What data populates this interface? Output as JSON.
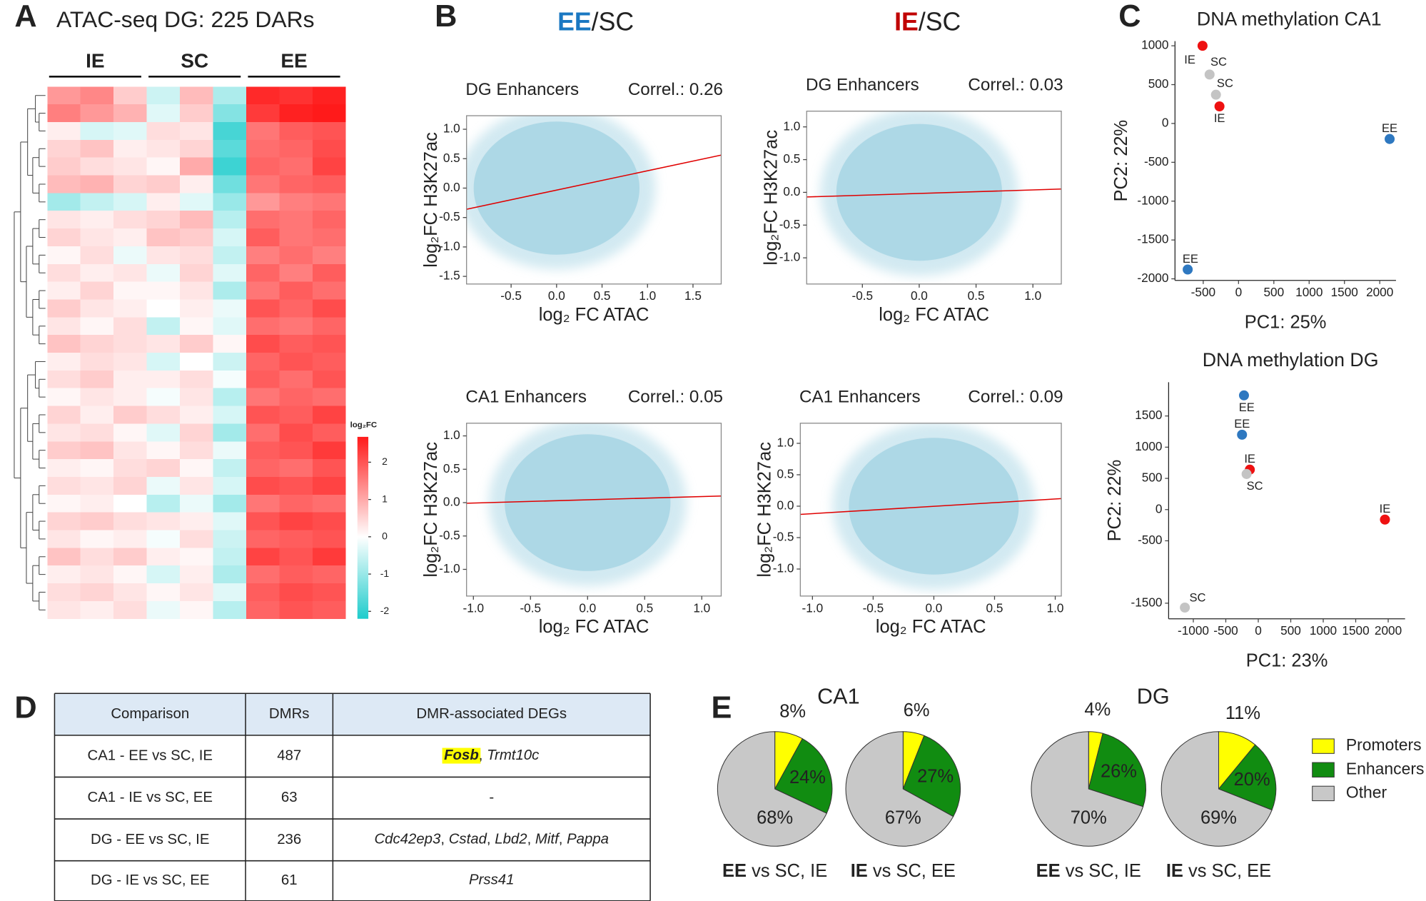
{
  "panel_labels": [
    "A",
    "B",
    "C",
    "D",
    "E"
  ],
  "chart_data": [
    {
      "type": "heatmap",
      "title": "ATAC-seq DG: 225 DARs",
      "groups": [
        {
          "name": "IE",
          "color": "#c00000"
        },
        {
          "name": "SC",
          "color": "#111111"
        },
        {
          "name": "EE",
          "color": "#1a78c2"
        }
      ],
      "colors": [
        "#1ecccc",
        "#ffffff",
        "#ff1a1a"
      ],
      "colorbar": {
        "title": "log₂FC",
        "lim": [
          -2.2,
          2.68
        ],
        "ticks": [
          2,
          1,
          0,
          -1,
          -2
        ]
      },
      "matrix": [
        [
          1.2,
          1.4,
          0.6,
          -0.5,
          0.8,
          -0.8,
          2.5,
          2.4,
          2.6
        ],
        [
          1.5,
          1.2,
          0.9,
          -0.3,
          0.6,
          -1.2,
          2.3,
          2.6,
          2.7
        ],
        [
          0.2,
          -0.4,
          -0.3,
          0.4,
          0.3,
          -1.8,
          1.6,
          1.9,
          2.0
        ],
        [
          0.5,
          0.7,
          0.2,
          0.3,
          0.5,
          -1.6,
          1.7,
          1.8,
          2.1
        ],
        [
          0.6,
          0.4,
          0.3,
          0.1,
          1.0,
          -1.9,
          1.8,
          1.7,
          2.2
        ],
        [
          0.8,
          0.9,
          0.5,
          0.6,
          0.2,
          -1.4,
          1.6,
          1.8,
          1.9
        ],
        [
          -0.9,
          -0.6,
          -0.4,
          0.2,
          -0.3,
          -1.0,
          1.2,
          1.5,
          1.6
        ],
        [
          0.3,
          0.2,
          0.4,
          0.5,
          0.8,
          -0.7,
          1.7,
          1.6,
          1.8
        ],
        [
          0.5,
          0.3,
          0.2,
          0.7,
          0.6,
          -0.4,
          1.9,
          1.6,
          1.7
        ],
        [
          0.1,
          0.4,
          -0.2,
          0.3,
          0.4,
          -0.6,
          1.5,
          1.7,
          1.5
        ],
        [
          0.4,
          0.2,
          0.3,
          -0.2,
          0.5,
          -0.3,
          1.8,
          1.5,
          1.9
        ],
        [
          0.2,
          0.5,
          0.1,
          0.1,
          0.3,
          -0.8,
          1.6,
          1.9,
          1.7
        ],
        [
          0.6,
          0.3,
          0.2,
          0.0,
          0.2,
          -0.2,
          2.0,
          1.8,
          2.1
        ],
        [
          0.3,
          0.1,
          0.4,
          -0.6,
          0.1,
          -0.3,
          1.7,
          1.6,
          1.8
        ],
        [
          0.7,
          0.5,
          0.4,
          0.3,
          0.6,
          0.1,
          2.1,
          1.9,
          2.0
        ],
        [
          0.2,
          0.4,
          0.3,
          -0.4,
          0.0,
          -0.5,
          1.8,
          2.0,
          1.9
        ],
        [
          0.4,
          0.6,
          0.2,
          0.2,
          0.4,
          -0.1,
          1.9,
          1.7,
          2.0
        ],
        [
          0.1,
          0.3,
          0.2,
          -0.1,
          0.3,
          -0.7,
          1.6,
          1.8,
          1.7
        ],
        [
          0.5,
          0.2,
          0.6,
          0.4,
          0.2,
          -0.4,
          2.0,
          1.9,
          2.2
        ],
        [
          0.3,
          0.4,
          0.1,
          -0.3,
          0.5,
          -0.9,
          1.7,
          2.1,
          1.9
        ],
        [
          0.6,
          0.7,
          0.3,
          0.1,
          0.4,
          -0.2,
          1.9,
          2.0,
          2.3
        ],
        [
          0.2,
          0.1,
          0.4,
          0.5,
          0.1,
          -0.6,
          1.8,
          1.7,
          2.0
        ],
        [
          0.4,
          0.3,
          0.5,
          -0.2,
          0.3,
          -0.4,
          2.1,
          2.0,
          2.2
        ],
        [
          0.1,
          0.2,
          0.0,
          -0.7,
          -0.2,
          -0.9,
          1.6,
          1.8,
          1.7
        ],
        [
          0.5,
          0.6,
          0.4,
          0.3,
          0.2,
          -0.3,
          2.0,
          2.2,
          2.1
        ],
        [
          0.3,
          0.1,
          0.2,
          -0.1,
          0.4,
          -0.5,
          1.8,
          1.9,
          2.0
        ],
        [
          0.7,
          0.4,
          0.6,
          0.2,
          0.1,
          -0.6,
          2.2,
          2.0,
          2.3
        ],
        [
          0.2,
          0.3,
          0.1,
          -0.4,
          0.2,
          -0.8,
          1.7,
          1.9,
          1.8
        ],
        [
          0.4,
          0.5,
          0.3,
          0.1,
          0.3,
          -0.3,
          1.9,
          2.1,
          2.0
        ],
        [
          0.3,
          0.2,
          0.4,
          -0.2,
          0.1,
          -0.7,
          1.8,
          2.0,
          1.9
        ]
      ]
    },
    {
      "type": "scatter",
      "frame": true,
      "title": "DG Enhancers",
      "annotation": "Correl.: 0.26",
      "xlabel": "log₂ FC ATAC",
      "ylabel": "log₂FC H3K27ac",
      "point_color": "#add8e6",
      "xlim": [
        -0.99,
        1.81
      ],
      "ylim": [
        -1.63,
        1.23
      ],
      "xticks": [
        -0.5,
        {
          "value": 0,
          "label": "0.0"
        },
        0.5,
        {
          "value": 1,
          "label": "1.0"
        },
        1.5
      ],
      "yticks": [
        {
          "value": 1,
          "label": "1.0"
        },
        0.5,
        {
          "value": 0,
          "label": "0.0"
        },
        -0.5,
        {
          "value": -1,
          "label": "-1.0"
        },
        -1.5
      ],
      "fit": {
        "color": "#e00000",
        "x": [
          -0.99,
          1.81
        ],
        "values": [
          -0.36,
          0.56
        ]
      }
    },
    {
      "type": "scatter",
      "frame": true,
      "title": "DG Enhancers",
      "annotation": "Correl.: 0.03",
      "xlabel": "log₂ FC ATAC",
      "ylabel": "log₂FC H3K27ac",
      "point_color": "#add8e6",
      "xlim": [
        -0.99,
        1.25
      ],
      "ylim": [
        -1.4,
        1.24
      ],
      "xticks": [
        -0.5,
        {
          "value": 0,
          "label": "0.0"
        },
        0.5,
        {
          "value": 1,
          "label": "1.0"
        }
      ],
      "yticks": [
        {
          "value": 1,
          "label": "1.0"
        },
        0.5,
        {
          "value": 0,
          "label": "0.0"
        },
        -0.5,
        {
          "value": -1,
          "label": "-1.0"
        }
      ],
      "fit": {
        "color": "#e00000",
        "x": [
          -0.99,
          1.25
        ],
        "values": [
          -0.07,
          0.05
        ]
      }
    },
    {
      "type": "scatter",
      "frame": true,
      "title": "CA1 Enhancers",
      "annotation": "Correl.: 0.05",
      "xlabel": "log₂ FC ATAC",
      "ylabel": "log₂FC H3K27ac",
      "point_color": "#add8e6",
      "xlim": [
        -1.06,
        1.17
      ],
      "ylim": [
        -1.4,
        1.19
      ],
      "xticks": [
        {
          "value": -1,
          "label": "-1.0"
        },
        -0.5,
        {
          "value": 0,
          "label": "0.0"
        },
        0.5,
        {
          "value": 1,
          "label": "1.0"
        }
      ],
      "yticks": [
        {
          "value": 1,
          "label": "1.0"
        },
        0.5,
        {
          "value": 0,
          "label": "0.0"
        },
        -0.5,
        {
          "value": -1,
          "label": "-1.0"
        }
      ],
      "fit": {
        "color": "#e00000",
        "x": [
          -1.06,
          1.17
        ],
        "values": [
          -0.01,
          0.1
        ]
      }
    },
    {
      "type": "scatter",
      "frame": true,
      "title": "CA1 Enhancers",
      "annotation": "Correl.: 0.09",
      "xlabel": "log₂ FC ATAC",
      "ylabel": "log₂FC H3K27ac",
      "point_color": "#add8e6",
      "xlim": [
        -1.1,
        1.05
      ],
      "ylim": [
        -1.43,
        1.32
      ],
      "xticks": [
        {
          "value": -1,
          "label": "-1.0"
        },
        -0.5,
        {
          "value": 0,
          "label": "0.0"
        },
        0.5,
        {
          "value": 1,
          "label": "1.0"
        }
      ],
      "yticks": [
        {
          "value": 1,
          "label": "1.0"
        },
        0.5,
        {
          "value": 0,
          "label": "0.0"
        },
        -0.5,
        {
          "value": -1,
          "label": "-1.0"
        }
      ],
      "fit": {
        "color": "#e00000",
        "x": [
          -1.1,
          1.05
        ],
        "values": [
          -0.13,
          0.12
        ]
      }
    },
    {
      "type": "scatter",
      "frame": false,
      "title": "DNA methylation CA1",
      "xlabel": "PC1: 25%",
      "ylabel": "PC2: 22%",
      "xlim": [
        -900,
        2230
      ],
      "ylim": [
        -2020,
        1060
      ],
      "xticks": [
        -500,
        0,
        500,
        1000,
        1500,
        2000
      ],
      "yticks": [
        1000,
        500,
        0,
        -500,
        -1000,
        -1500,
        -2000
      ],
      "series": [
        {
          "name": "IE",
          "color": "#ee1111",
          "label_color": "#ee1111",
          "x": [
            -510,
            -270
          ],
          "values": [
            1000,
            220
          ]
        },
        {
          "name": "SC",
          "color": "#c4c4c4",
          "label_color": "#111111",
          "x": [
            -410,
            -320
          ],
          "values": [
            630,
            370
          ]
        },
        {
          "name": "EE",
          "color": "#2e78c0",
          "label_color": "#2e78c0",
          "x": [
            2140,
            -720
          ],
          "values": [
            -200,
            -1880
          ]
        }
      ]
    },
    {
      "type": "scatter",
      "frame": false,
      "title": "DNA methylation DG",
      "xlabel": "PC1: 23%",
      "ylabel": "PC2: 22%",
      "xlim": [
        -1380,
        2260
      ],
      "ylim": [
        -1750,
        2040
      ],
      "xticks": [
        -1000,
        -500,
        0,
        500,
        1000,
        1500,
        2000
      ],
      "yticks": [
        1500,
        1000,
        500,
        0,
        -500,
        -1500
      ],
      "series": [
        {
          "name": "IE",
          "color": "#ee1111",
          "label_color": "#ee1111",
          "x": [
            -130,
            1950
          ],
          "values": [
            640,
            -160
          ]
        },
        {
          "name": "SC",
          "color": "#c4c4c4",
          "label_color": "#111111",
          "x": [
            -180,
            -1130
          ],
          "values": [
            570,
            -1570
          ]
        },
        {
          "name": "EE",
          "color": "#2e78c0",
          "label_color": "#2e78c0",
          "x": [
            -220,
            -250
          ],
          "values": [
            1830,
            1200
          ]
        }
      ]
    },
    {
      "type": "pie",
      "categories": [
        "Promoters",
        "Enhancers",
        "Other"
      ],
      "colors": [
        "#ffff00",
        "#118c11",
        "#c8c8c8"
      ],
      "values": [
        8,
        24,
        68
      ],
      "value_labels": [
        "8%",
        "24%",
        "68%"
      ],
      "caption": [
        {
          "text": "EE",
          "bold": true
        },
        {
          "text": " vs SC, IE"
        }
      ]
    },
    {
      "type": "pie",
      "categories": [
        "Promoters",
        "Enhancers",
        "Other"
      ],
      "colors": [
        "#ffff00",
        "#118c11",
        "#c8c8c8"
      ],
      "values": [
        6,
        27,
        67
      ],
      "value_labels": [
        "6%",
        "27%",
        "67%"
      ],
      "caption": [
        {
          "text": "IE",
          "bold": true
        },
        {
          "text": " vs SC, EE"
        }
      ]
    },
    {
      "type": "pie",
      "categories": [
        "Promoters",
        "Enhancers",
        "Other"
      ],
      "colors": [
        "#ffff00",
        "#118c11",
        "#c8c8c8"
      ],
      "values": [
        4,
        26,
        70
      ],
      "value_labels": [
        "4%",
        "26%",
        "70%"
      ],
      "caption": [
        {
          "text": "EE",
          "bold": true
        },
        {
          "text": " vs SC, IE"
        }
      ]
    },
    {
      "type": "pie",
      "categories": [
        "Promoters",
        "Enhancers",
        "Other"
      ],
      "colors": [
        "#ffff00",
        "#118c11",
        "#c8c8c8"
      ],
      "values": [
        11,
        20,
        69
      ],
      "value_labels": [
        "11%",
        "20%",
        "69%"
      ],
      "caption": [
        {
          "text": "IE",
          "bold": true
        },
        {
          "text": " vs SC, EE"
        }
      ]
    }
  ],
  "panel_b_headers": [
    [
      {
        "text": "EE",
        "color": "#1a78c2"
      },
      {
        "text": "/SC"
      }
    ],
    [
      {
        "text": "IE",
        "color": "#c00000"
      },
      {
        "text": "/SC"
      }
    ]
  ],
  "panel_e_headers": [
    "CA1",
    "DG"
  ],
  "table": {
    "header_color": "#dde9f5",
    "highlight_color": "#ffff00",
    "columns": [
      "Comparison",
      "DMRs",
      "DMR-associated DEGs"
    ],
    "rows": [
      {
        "comparison": "CA1 - EE vs SC, IE",
        "dmrs": 487,
        "degs": [
          {
            "text": "Fosb",
            "highlight": true
          },
          {
            "text": ", "
          },
          {
            "text": "Trmt10c"
          }
        ]
      },
      {
        "comparison": "CA1 - IE vs SC, EE",
        "dmrs": 63,
        "degs": [
          {
            "text": "-"
          }
        ]
      },
      {
        "comparison": "DG - EE vs SC, IE",
        "dmrs": 236,
        "degs": [
          {
            "text": "Cdc42ep3"
          },
          {
            "text": ", "
          },
          {
            "text": "Cstad"
          },
          {
            "text": ", "
          },
          {
            "text": "Lbd2"
          },
          {
            "text": ", "
          },
          {
            "text": "Mitf"
          },
          {
            "text": ", "
          },
          {
            "text": "Pappa"
          }
        ]
      },
      {
        "comparison": "DG - IE vs SC, EE",
        "dmrs": 61,
        "degs": [
          {
            "text": "Prss41"
          }
        ]
      }
    ]
  }
}
